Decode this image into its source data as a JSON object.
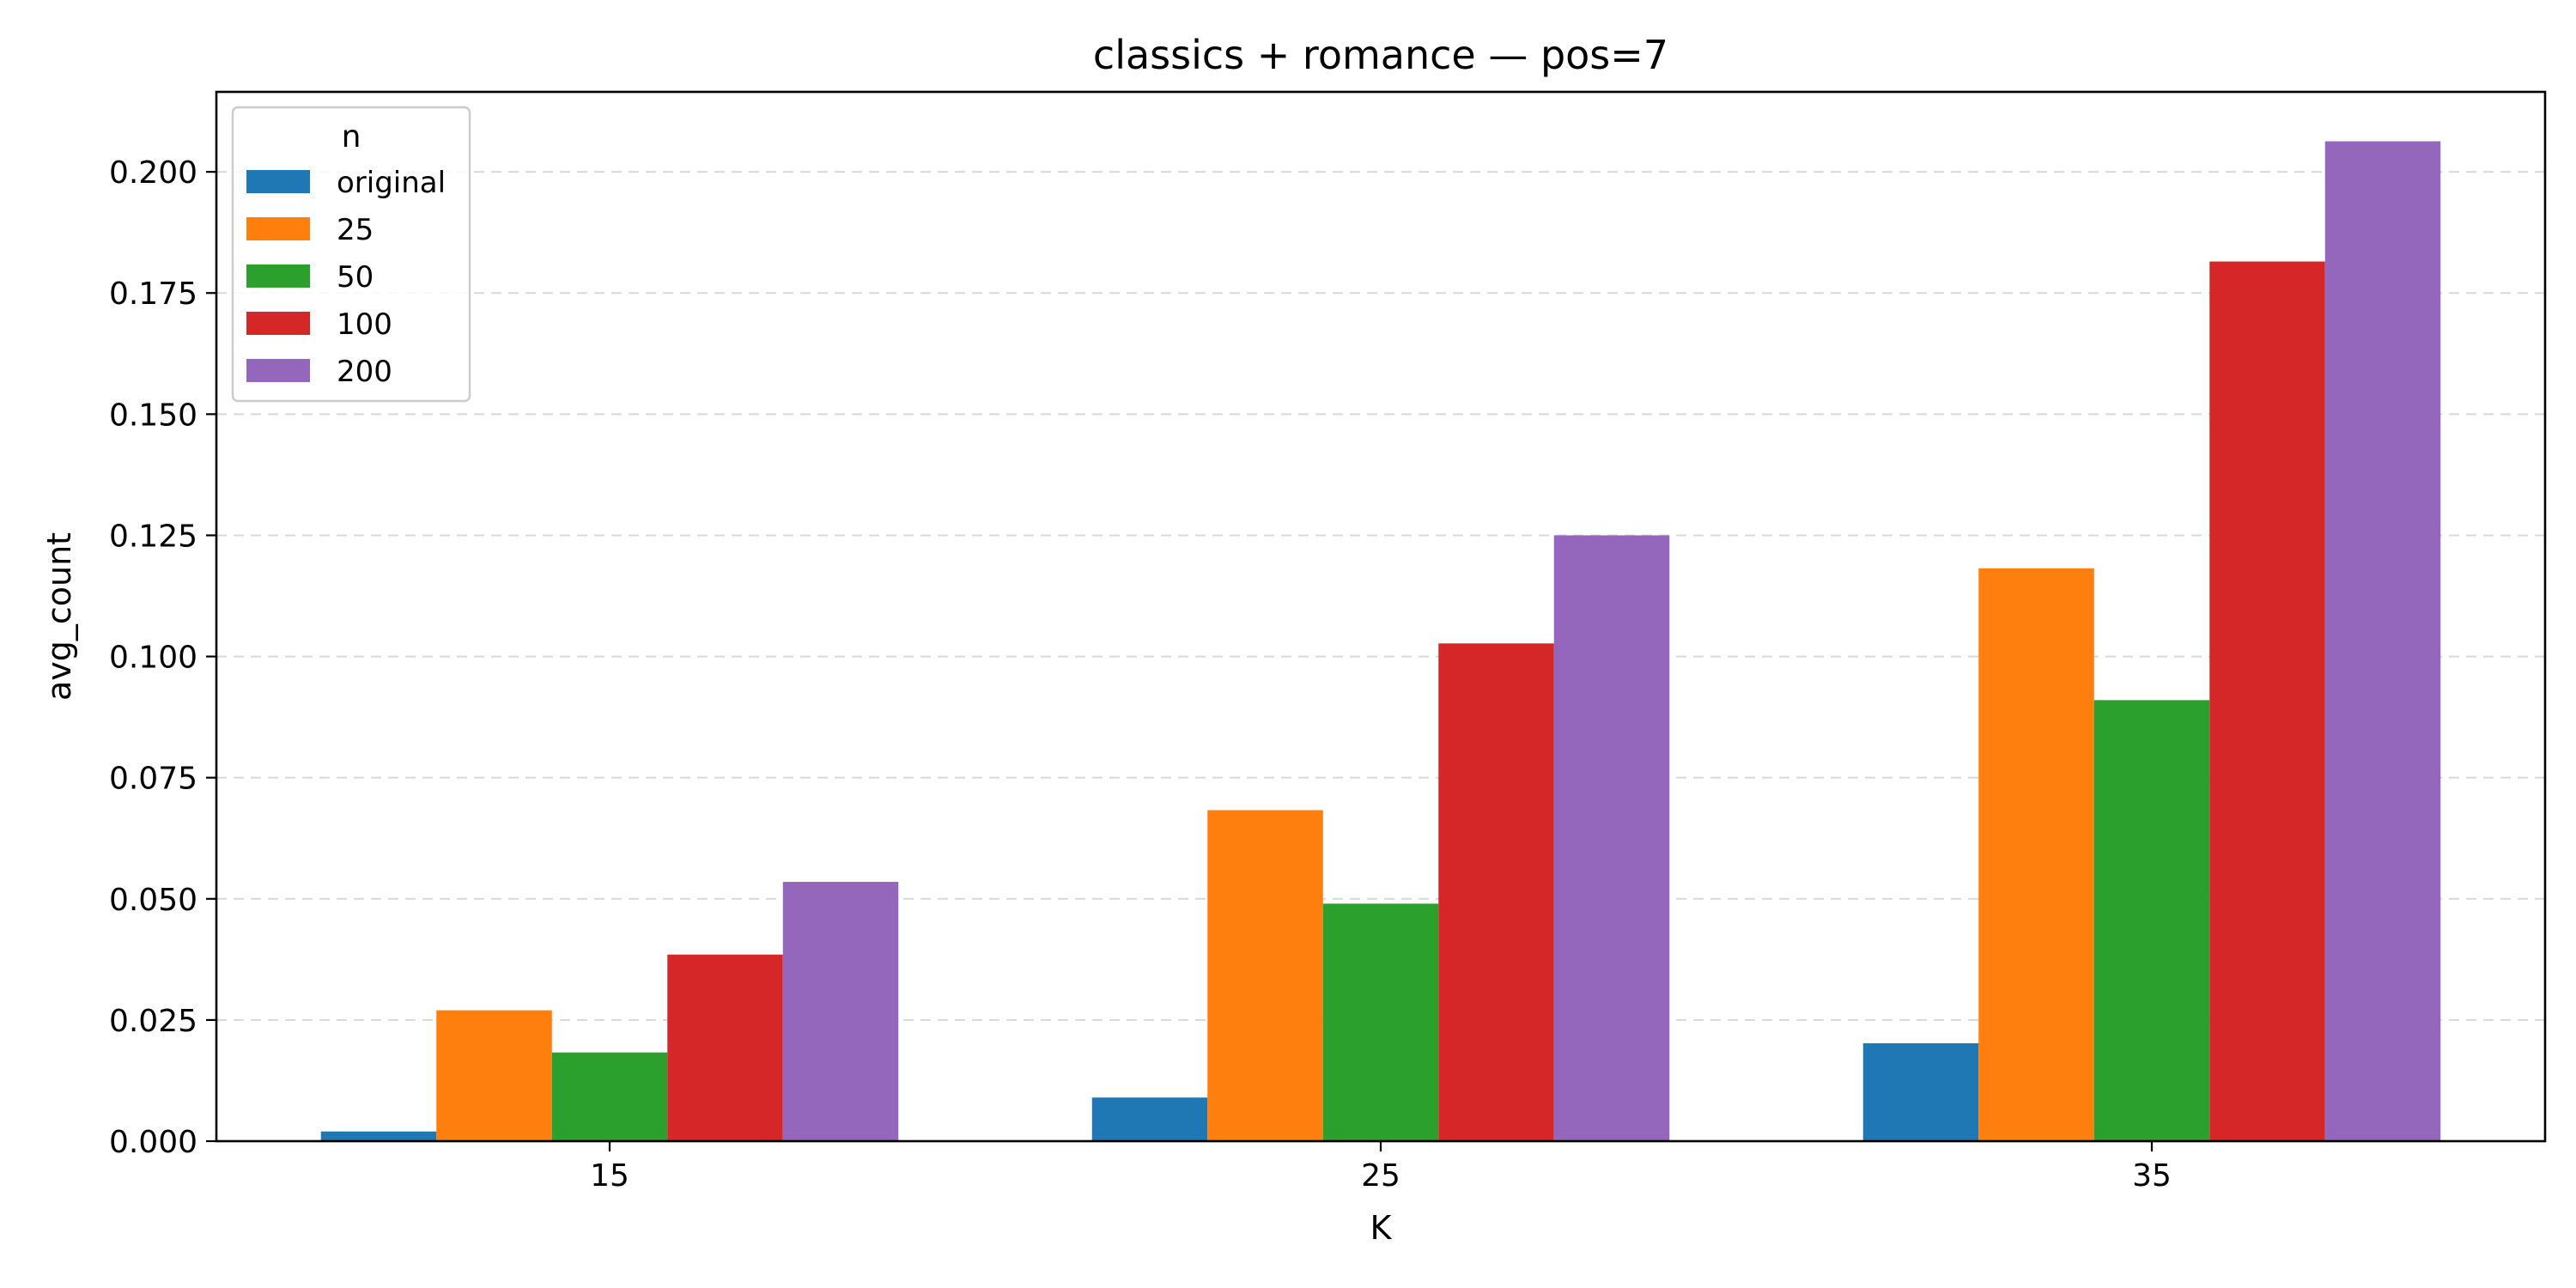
{
  "chart_data": {
    "type": "bar",
    "title": "classics + romance — pos=7",
    "xlabel": "K",
    "ylabel": "avg_count",
    "categories": [
      "15",
      "25",
      "35"
    ],
    "ylim": [
      0,
      0.2165
    ],
    "yticks": [
      0.0,
      0.025,
      0.05,
      0.075,
      0.1,
      0.125,
      0.15,
      0.175,
      0.2
    ],
    "ytick_labels": [
      "0.000",
      "0.025",
      "0.050",
      "0.075",
      "0.100",
      "0.125",
      "0.150",
      "0.175",
      "0.200"
    ],
    "grid": "y-dashed",
    "legend": {
      "title": "n",
      "placement": "top-left"
    },
    "series": [
      {
        "name": "original",
        "color": "#1f77b4",
        "values": [
          0.002,
          0.009,
          0.0202
        ]
      },
      {
        "name": "25",
        "color": "#ff7f0e",
        "values": [
          0.027,
          0.0683,
          0.1182
        ]
      },
      {
        "name": "50",
        "color": "#2ca02c",
        "values": [
          0.0183,
          0.049,
          0.091
        ]
      },
      {
        "name": "100",
        "color": "#d62728",
        "values": [
          0.0385,
          0.1027,
          0.1815
        ]
      },
      {
        "name": "200",
        "color": "#9467bd",
        "values": [
          0.0535,
          0.125,
          0.2063
        ]
      }
    ]
  }
}
